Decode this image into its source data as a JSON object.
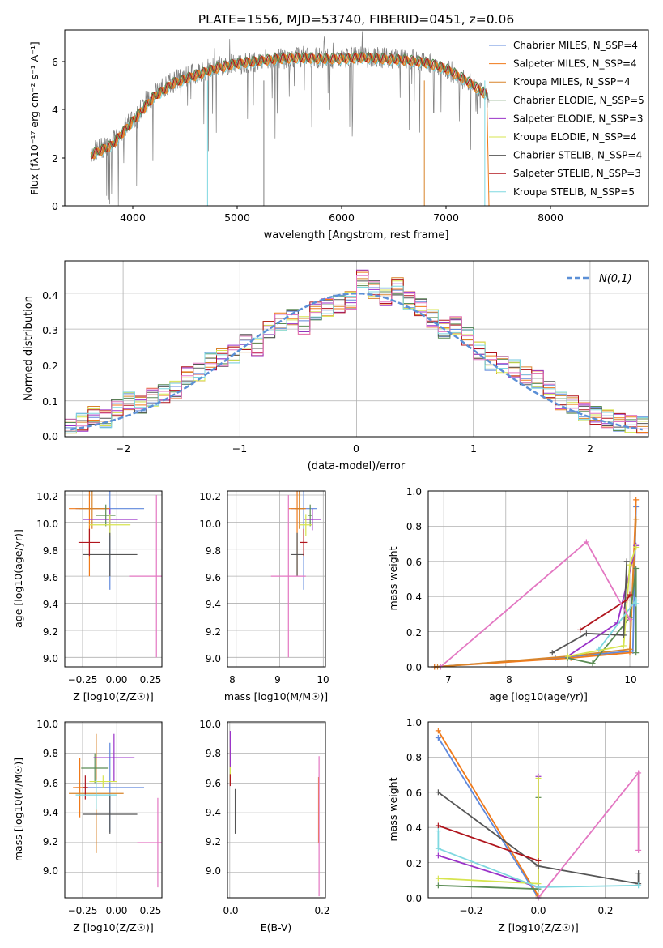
{
  "colors": {
    "chabrier_miles": "#5f88dc",
    "salpeter_miles": "#f07a1a",
    "kroupa_miles": "#d8842a",
    "chabrier_elodie": "#5b8c55",
    "salpeter_elodie": "#9a32c8",
    "kroupa_elodie": "#d7e44f",
    "chabrier_stelib": "#555555",
    "salpeter_stelib": "#b0151d",
    "kroupa_stelib": "#7fd8e0",
    "pink": "#e377c2",
    "grey_data": "#808080"
  },
  "panel1": {
    "title": "PLATE=1556, MJD=53740, FIBERID=0451, z=0.06",
    "xlabel": "wavelength [Angstrom, rest frame]",
    "ylabel": "Flux [fλ10⁻¹⁷ erg cm⁻² s⁻¹ A⁻¹]",
    "xticks": [
      "4000",
      "5000",
      "6000",
      "7000",
      "8000"
    ],
    "yticks": [
      "0",
      "2",
      "4",
      "6"
    ],
    "legend": [
      "Chabrier MILES, N_SSP=4",
      "Salpeter MILES, N_SSP=4",
      "Kroupa MILES, N_SSP=4",
      "Chabrier ELODIE, N_SSP=5",
      "Salpeter ELODIE, N_SSP=3",
      "Kroupa ELODIE, N_SSP=4",
      "Chabrier STELIB, N_SSP=4",
      "Salpeter STELIB, N_SSP=3",
      "Kroupa STELIB, N_SSP=5"
    ]
  },
  "panel2": {
    "xlabel": "(data-model)/error",
    "ylabel": "Normed distribution",
    "legend": "N(0,1)",
    "xticks": [
      "−2",
      "−1",
      "0",
      "1",
      "2"
    ],
    "yticks": [
      "0.0",
      "0.1",
      "0.2",
      "0.3",
      "0.4"
    ]
  },
  "panel3": {
    "xlabel": "Z [log10(Z/Z☉)]",
    "ylabel": "age  [log10(age/yr)]",
    "xticks": [
      "−0.25",
      "0.00",
      "0.25"
    ],
    "yticks": [
      "9.0",
      "9.2",
      "9.4",
      "9.6",
      "9.8",
      "10.0",
      "10.2"
    ]
  },
  "panel4": {
    "xlabel": "mass [log10(M/M☉)]",
    "xticks": [
      "8",
      "9",
      "10"
    ],
    "yticks": [
      "9.0",
      "9.2",
      "9.4",
      "9.6",
      "9.8",
      "10.0",
      "10.2"
    ]
  },
  "panel5": {
    "xlabel": "age  [log10(age/yr)]",
    "ylabel": "mass weight",
    "xticks": [
      "7",
      "8",
      "9",
      "10"
    ],
    "yticks": [
      "0.0",
      "0.2",
      "0.4",
      "0.6",
      "0.8",
      "1.0"
    ]
  },
  "panel6": {
    "xlabel": "Z [log10(Z/Z☉)]",
    "ylabel": "mass [log10(M/M☉)]",
    "xticks": [
      "−0.25",
      "0.00",
      "0.25"
    ],
    "yticks": [
      "9.0",
      "9.2",
      "9.4",
      "9.6",
      "9.8",
      "10.0"
    ]
  },
  "panel7": {
    "xlabel": "E(B-V)",
    "xticks": [
      "0.0",
      "0.2"
    ],
    "yticks": [
      "9.0",
      "9.2",
      "9.4",
      "9.6",
      "9.8",
      "10.0"
    ]
  },
  "panel8": {
    "xlabel": "Z [log10(Z/Z☉)]",
    "ylabel": "mass weight",
    "xticks": [
      "−0.2",
      "0.0",
      "0.2"
    ],
    "yticks": [
      "0.0",
      "0.2",
      "0.4",
      "0.6",
      "0.8",
      "1.0"
    ]
  },
  "chart_data": [
    {
      "type": "line",
      "title": "PLATE=1556, MJD=53740, FIBERID=0451, z=0.06",
      "xlim": [
        3350,
        8950
      ],
      "ylim": [
        0,
        7.3
      ],
      "series": [
        {
          "name": "data",
          "x": [
            3600,
            3800,
            4000,
            4200,
            4400,
            4600,
            4800,
            5000,
            5200,
            5400,
            5600,
            5800,
            6000,
            6200,
            6400,
            6600,
            6800,
            7000,
            7200,
            7400
          ],
          "y": [
            2.2,
            2.6,
            3.6,
            4.6,
            5.2,
            5.5,
            5.8,
            5.9,
            6.0,
            6.1,
            6.2,
            6.15,
            6.1,
            6.2,
            6.15,
            6.1,
            6.0,
            5.7,
            5.2,
            4.5
          ]
        },
        {
          "name": "Chabrier MILES, N_SSP=4",
          "x": [
            3600,
            3800,
            4000,
            4200,
            4400,
            4600,
            4800,
            5000,
            5200,
            5400,
            5600,
            5800,
            6000,
            6200,
            6400,
            6600,
            6800,
            7000,
            7200,
            7400
          ],
          "y": [
            2.1,
            2.5,
            3.5,
            4.5,
            5.1,
            5.4,
            5.7,
            5.9,
            6.0,
            6.1,
            6.15,
            6.1,
            6.1,
            6.15,
            6.1,
            6.05,
            5.95,
            5.7,
            5.2,
            4.6
          ]
        }
      ]
    },
    {
      "type": "area",
      "xlim": [
        -2.5,
        2.5
      ],
      "ylim": [
        0,
        0.49
      ],
      "x": [
        -2.45,
        -2.35,
        -2.25,
        -2.15,
        -2.05,
        -1.95,
        -1.85,
        -1.75,
        -1.65,
        -1.55,
        -1.45,
        -1.35,
        -1.25,
        -1.15,
        -1.05,
        -0.95,
        -0.85,
        -0.75,
        -0.65,
        -0.55,
        -0.45,
        -0.35,
        -0.25,
        -0.15,
        -0.05,
        0.05,
        0.15,
        0.25,
        0.35,
        0.45,
        0.55,
        0.65,
        0.75,
        0.85,
        0.95,
        1.05,
        1.15,
        1.25,
        1.35,
        1.45,
        1.55,
        1.65,
        1.75,
        1.85,
        1.95,
        2.05,
        2.15,
        2.25,
        2.35,
        2.45
      ],
      "series": [
        {
          "name": "histogram",
          "values": [
            0.025,
            0.04,
            0.06,
            0.05,
            0.08,
            0.1,
            0.09,
            0.11,
            0.12,
            0.13,
            0.17,
            0.18,
            0.21,
            0.22,
            0.23,
            0.26,
            0.25,
            0.3,
            0.32,
            0.33,
            0.31,
            0.35,
            0.36,
            0.37,
            0.38,
            0.44,
            0.41,
            0.39,
            0.42,
            0.38,
            0.36,
            0.33,
            0.3,
            0.31,
            0.28,
            0.24,
            0.21,
            0.2,
            0.19,
            0.17,
            0.16,
            0.13,
            0.1,
            0.09,
            0.07,
            0.06,
            0.05,
            0.04,
            0.035,
            0.03
          ]
        },
        {
          "name": "N(0,1)",
          "values": [
            0.02,
            0.025,
            0.032,
            0.04,
            0.049,
            0.06,
            0.072,
            0.086,
            0.102,
            0.12,
            0.139,
            0.16,
            0.183,
            0.206,
            0.23,
            0.254,
            0.279,
            0.3,
            0.322,
            0.343,
            0.36,
            0.375,
            0.387,
            0.395,
            0.399,
            0.399,
            0.395,
            0.387,
            0.375,
            0.36,
            0.343,
            0.322,
            0.3,
            0.279,
            0.254,
            0.23,
            0.206,
            0.183,
            0.16,
            0.139,
            0.12,
            0.102,
            0.086,
            0.072,
            0.06,
            0.049,
            0.04,
            0.032,
            0.025,
            0.02
          ]
        }
      ]
    },
    {
      "type": "scatter",
      "xlim": [
        -0.38,
        0.33
      ],
      "ylim": [
        8.93,
        10.23
      ],
      "points": [
        {
          "c": "chabrier_miles",
          "x": -0.05,
          "y": 10.1,
          "xe": 0.25,
          "ye": 0.6
        },
        {
          "c": "salpeter_miles",
          "x": -0.2,
          "y": 10.1,
          "xe": 0.15,
          "ye": 0.5
        },
        {
          "c": "kroupa_miles",
          "x": -0.18,
          "y": 10.1,
          "xe": 0.1,
          "ye": 0.15
        },
        {
          "c": "chabrier_elodie",
          "x": -0.08,
          "y": 10.05,
          "xe": 0.07,
          "ye": 0.08
        },
        {
          "c": "salpeter_elodie",
          "x": -0.05,
          "y": 10.02,
          "xe": 0.2,
          "ye": 0.08
        },
        {
          "c": "kroupa_elodie",
          "x": -0.05,
          "y": 9.98,
          "xe": 0.15,
          "ye": 0.08
        },
        {
          "c": "chabrier_stelib",
          "x": -0.05,
          "y": 9.76,
          "xe": 0.2,
          "ye": 0.16
        },
        {
          "c": "salpeter_stelib",
          "x": -0.2,
          "y": 9.85,
          "xe": 0.08,
          "ye": 0.1
        },
        {
          "c": "pink",
          "x": 0.29,
          "y": 9.6,
          "xe": 0.2,
          "ye": 0.6
        }
      ]
    },
    {
      "type": "scatter",
      "xlim": [
        7.8,
        10.05
      ],
      "ylim": [
        8.93,
        10.23
      ],
      "points": [
        {
          "c": "chabrier_miles",
          "x": 9.55,
          "y": 10.1,
          "xe": 0.3,
          "ye": 0.6
        },
        {
          "c": "salpeter_miles",
          "x": 9.4,
          "y": 10.1,
          "xe": 0.2,
          "ye": 0.5
        },
        {
          "c": "kroupa_miles",
          "x": 9.45,
          "y": 10.1,
          "xe": 0.1,
          "ye": 0.15
        },
        {
          "c": "chabrier_elodie",
          "x": 9.7,
          "y": 10.05,
          "xe": 0.05,
          "ye": 0.08
        },
        {
          "c": "salpeter_elodie",
          "x": 9.75,
          "y": 10.02,
          "xe": 0.2,
          "ye": 0.08
        },
        {
          "c": "kroupa_elodie",
          "x": 9.6,
          "y": 9.98,
          "xe": 0.15,
          "ye": 0.08
        },
        {
          "c": "chabrier_stelib",
          "x": 9.4,
          "y": 9.76,
          "xe": 0.15,
          "ye": 0.16
        },
        {
          "c": "salpeter_stelib",
          "x": 9.55,
          "y": 9.85,
          "xe": 0.08,
          "ye": 0.1
        },
        {
          "c": "pink",
          "x": 9.2,
          "y": 9.6,
          "xe": 0.4,
          "ye": 0.6
        }
      ]
    },
    {
      "type": "line",
      "xlim": [
        6.75,
        10.3
      ],
      "ylim": [
        0,
        1
      ],
      "series": [
        {
          "c": "chabrier_miles",
          "x": [
            6.85,
            8.8,
            10.05,
            10.1
          ],
          "y": [
            0.0,
            0.05,
            0.09,
            0.91
          ]
        },
        {
          "c": "salpeter_miles",
          "x": [
            6.85,
            9.05,
            10.0,
            10.1
          ],
          "y": [
            0.0,
            0.05,
            0.08,
            0.95
          ]
        },
        {
          "c": "kroupa_miles",
          "x": [
            6.9,
            9.0,
            10.0,
            10.1
          ],
          "y": [
            0.0,
            0.06,
            0.1,
            0.84
          ]
        },
        {
          "c": "chabrier_elodie",
          "x": [
            9.0,
            9.4,
            10.0,
            10.1,
            10.1
          ],
          "y": [
            0.05,
            0.02,
            0.28,
            0.56,
            0.08
          ]
        },
        {
          "c": "salpeter_elodie",
          "x": [
            9.0,
            9.8,
            10.1
          ],
          "y": [
            0.06,
            0.25,
            0.69
          ]
        },
        {
          "c": "kroupa_elodie",
          "x": [
            9.0,
            9.9,
            10.0,
            10.1
          ],
          "y": [
            0.06,
            0.12,
            0.58,
            0.68
          ]
        },
        {
          "c": "chabrier_stelib",
          "x": [
            8.75,
            9.3,
            9.9,
            9.95
          ],
          "y": [
            0.08,
            0.19,
            0.18,
            0.6
          ]
        },
        {
          "c": "salpeter_stelib",
          "x": [
            9.2,
            9.95,
            10.0
          ],
          "y": [
            0.21,
            0.38,
            0.41
          ]
        },
        {
          "c": "kroupa_stelib",
          "x": [
            9.5,
            10.1,
            10.1
          ],
          "y": [
            0.1,
            0.38,
            0.36
          ]
        },
        {
          "c": "pink",
          "x": [
            6.95,
            9.3,
            10.0
          ],
          "y": [
            0.0,
            0.71,
            0.27
          ]
        }
      ]
    },
    {
      "type": "scatter",
      "xlim": [
        -0.38,
        0.33
      ],
      "ylim": [
        8.83,
        10.01
      ],
      "points": [
        {
          "c": "chabrier_miles",
          "x": -0.05,
          "y": 9.57,
          "xe": 0.25,
          "ye": 0.3
        },
        {
          "c": "salpeter_miles",
          "x": -0.27,
          "y": 9.57,
          "xe": 0.05,
          "ye": 0.2
        },
        {
          "c": "kroupa_miles",
          "x": -0.15,
          "y": 9.53,
          "xe": 0.2,
          "ye": 0.4
        },
        {
          "c": "chabrier_elodie",
          "x": -0.16,
          "y": 9.7,
          "xe": 0.1,
          "ye": 0.1
        },
        {
          "c": "salpeter_elodie",
          "x": -0.02,
          "y": 9.77,
          "xe": 0.15,
          "ye": 0.16
        },
        {
          "c": "kroupa_elodie",
          "x": -0.1,
          "y": 9.61,
          "xe": 0.1,
          "ye": 0.04
        },
        {
          "c": "chabrier_stelib",
          "x": -0.05,
          "y": 9.39,
          "xe": 0.2,
          "ye": 0.13
        },
        {
          "c": "salpeter_stelib",
          "x": -0.23,
          "y": 9.57,
          "xe": 0.02,
          "ye": 0.08
        },
        {
          "c": "kroupa_stelib",
          "x": -0.15,
          "y": 9.52,
          "xe": 0.15,
          "ye": 0.1
        },
        {
          "c": "pink",
          "x": 0.3,
          "y": 9.2,
          "xe": 0.15,
          "ye": 0.3
        }
      ]
    },
    {
      "type": "scatter",
      "xlim": [
        -0.005,
        0.21
      ],
      "ylim": [
        8.83,
        10.01
      ],
      "points": [
        {
          "c": "chabrier_miles",
          "x": 0.195,
          "y": 9.42,
          "xe": 0.0,
          "ye": 0.22
        },
        {
          "c": "salpeter_miles",
          "x": 0.195,
          "y": 9.42,
          "xe": 0.0,
          "ye": 0.22
        },
        {
          "c": "kroupa_elodie",
          "x": 0.001,
          "y": 9.72,
          "xe": 0.0,
          "ye": 0.12
        },
        {
          "c": "salpeter_elodie",
          "x": 0.001,
          "y": 9.83,
          "xe": 0.0,
          "ye": 0.12
        },
        {
          "c": "chabrier_stelib",
          "x": 0.012,
          "y": 9.41,
          "xe": 0.0,
          "ye": 0.15
        },
        {
          "c": "salpeter_stelib",
          "x": 0.001,
          "y": 9.62,
          "xe": 0.0,
          "ye": 0.04
        },
        {
          "c": "pink",
          "x": 0.196,
          "y": 9.31,
          "xe": 0.0,
          "ye": 0.47
        }
      ]
    },
    {
      "type": "line",
      "xlim": [
        -0.33,
        0.33
      ],
      "ylim": [
        0,
        1
      ],
      "series": [
        {
          "c": "chabrier_miles",
          "x": [
            -0.3,
            0.0
          ],
          "y": [
            0.91,
            0.0
          ]
        },
        {
          "c": "salpeter_miles",
          "x": [
            -0.3,
            0.0
          ],
          "y": [
            0.95,
            0.01
          ]
        },
        {
          "c": "chabrier_elodie",
          "x": [
            -0.3,
            0.0,
            0.0,
            0.0
          ],
          "y": [
            0.07,
            0.05,
            0.57,
            0.06
          ]
        },
        {
          "c": "salpeter_elodie",
          "x": [
            -0.3,
            0.0,
            0.0
          ],
          "y": [
            0.24,
            0.06,
            0.69
          ]
        },
        {
          "c": "kroupa_elodie",
          "x": [
            -0.3,
            0.0,
            0.0
          ],
          "y": [
            0.11,
            0.08,
            0.68
          ]
        },
        {
          "c": "chabrier_stelib",
          "x": [
            -0.3,
            0.0,
            0.3,
            0.3
          ],
          "y": [
            0.6,
            0.18,
            0.08,
            0.14
          ]
        },
        {
          "c": "salpeter_stelib",
          "x": [
            -0.3,
            0.0
          ],
          "y": [
            0.41,
            0.21
          ]
        },
        {
          "c": "kroupa_stelib",
          "x": [
            -0.3,
            -0.3,
            0.0,
            0.3
          ],
          "y": [
            0.38,
            0.28,
            0.06,
            0.07
          ]
        },
        {
          "c": "pink",
          "x": [
            0.0,
            0.3,
            0.3
          ],
          "y": [
            0.0,
            0.71,
            0.27
          ]
        }
      ]
    }
  ]
}
